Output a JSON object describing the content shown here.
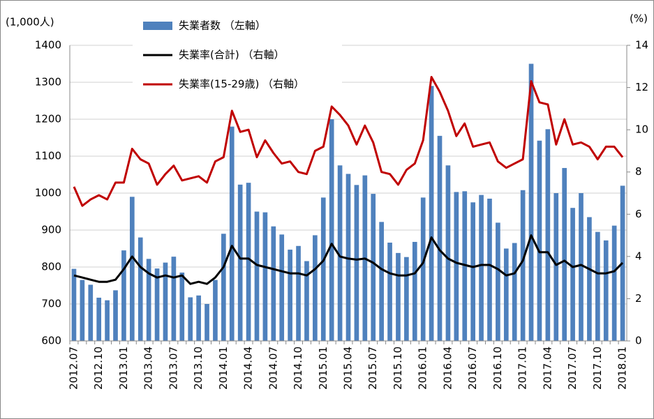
{
  "chart_data": {
    "type": "bar_line",
    "y_label": "(1,000人)",
    "y2_label": "(%)",
    "categories": [
      "2012.07",
      null,
      null,
      "2012.10",
      null,
      null,
      "2013.01",
      null,
      null,
      "2013.04",
      null,
      null,
      "2013.07",
      null,
      null,
      "2013.10",
      null,
      null,
      "2014.01",
      null,
      null,
      "2014.04",
      null,
      null,
      "2014.07",
      null,
      null,
      "2014.10",
      null,
      null,
      "2015.01",
      null,
      null,
      "2015.04",
      null,
      null,
      "2015.07",
      null,
      null,
      "2015.10",
      null,
      null,
      "2016.01",
      null,
      null,
      "2016.04",
      null,
      null,
      "2016.07",
      null,
      null,
      "2016.10",
      null,
      null,
      "2017.01",
      null,
      null,
      "2017.04",
      null,
      null,
      "2017.07",
      null,
      null,
      "2017.10",
      null,
      null,
      "2018.01"
    ],
    "series": [
      {
        "name": "失業者数 （左軸）",
        "type": "bar",
        "color": "#4f81bd",
        "values": [
          795,
          765,
          752,
          717,
          710,
          737,
          845,
          990,
          880,
          822,
          796,
          812,
          828,
          785,
          718,
          723,
          700,
          765,
          890,
          1180,
          1023,
          1028,
          950,
          948,
          910,
          888,
          847,
          857,
          816,
          886,
          988,
          1200,
          1075,
          1052,
          1022,
          1048,
          998,
          922,
          866,
          838,
          827,
          868,
          988,
          1290,
          1155,
          1075,
          1003,
          1005,
          975,
          995,
          985,
          920,
          850,
          865,
          1008,
          1350,
          1142,
          1173,
          1000,
          1068,
          960,
          1000,
          935,
          895,
          872,
          912,
          1020
        ]
      },
      {
        "name": "失業率(合計) （右軸）",
        "type": "line",
        "axis": "y2",
        "color": "#000000",
        "values": [
          3.1,
          3.0,
          2.9,
          2.8,
          2.8,
          2.9,
          3.4,
          4.0,
          3.5,
          3.2,
          3.0,
          3.1,
          3.0,
          3.1,
          2.7,
          2.8,
          2.7,
          3.0,
          3.5,
          4.5,
          3.9,
          3.9,
          3.6,
          3.5,
          3.4,
          3.3,
          3.2,
          3.2,
          3.1,
          3.4,
          3.8,
          4.6,
          4.0,
          3.9,
          3.85,
          3.9,
          3.7,
          3.4,
          3.2,
          3.1,
          3.1,
          3.2,
          3.7,
          4.9,
          4.3,
          3.9,
          3.7,
          3.6,
          3.5,
          3.6,
          3.6,
          3.4,
          3.1,
          3.2,
          3.8,
          5.0,
          4.2,
          4.2,
          3.6,
          3.8,
          3.5,
          3.6,
          3.4,
          3.2,
          3.2,
          3.3,
          3.7
        ]
      },
      {
        "name": "失業率(15-29歳) （右軸）",
        "type": "line",
        "axis": "y2",
        "color": "#c00000",
        "values": [
          7.3,
          6.4,
          6.7,
          6.9,
          6.7,
          7.5,
          7.5,
          9.1,
          8.6,
          8.4,
          7.4,
          7.9,
          8.3,
          7.6,
          7.7,
          7.8,
          7.5,
          8.5,
          8.7,
          10.9,
          9.9,
          10.0,
          8.7,
          9.5,
          8.9,
          8.4,
          8.5,
          8.0,
          7.9,
          9.0,
          9.2,
          11.1,
          10.7,
          10.2,
          9.3,
          10.2,
          9.4,
          8.0,
          7.9,
          7.4,
          8.1,
          8.4,
          9.5,
          12.5,
          11.8,
          10.9,
          9.7,
          10.3,
          9.2,
          9.3,
          9.4,
          8.5,
          8.2,
          8.4,
          8.6,
          12.3,
          11.3,
          11.2,
          9.3,
          10.5,
          9.3,
          9.4,
          9.2,
          8.6,
          9.2,
          9.2,
          8.7
        ]
      }
    ],
    "ylim": [
      600,
      1400
    ],
    "yticks": [
      600,
      700,
      800,
      900,
      1000,
      1100,
      1200,
      1300,
      1400
    ],
    "y2lim": [
      0,
      14
    ],
    "y2ticks": [
      0,
      2,
      4,
      6,
      8,
      10,
      12,
      14
    ],
    "grid": true
  }
}
